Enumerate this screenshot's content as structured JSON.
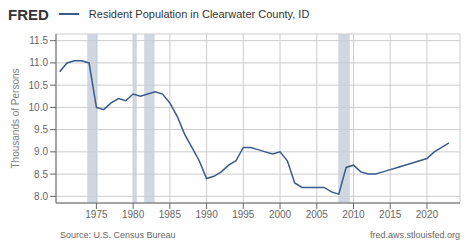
{
  "chart_data": {
    "type": "line",
    "title": "Resident Population in Clearwater County, ID",
    "y_label": "Thousands of Persons",
    "annotations": [
      "FRED",
      "Source: U.S. Census Bureau",
      "fred.aws.stlouisfed.org"
    ],
    "color": "#3a5a8c",
    "grid": true,
    "xlim": [
      1969.5,
      2024.5
    ],
    "xticks": [
      1975,
      1980,
      1985,
      1990,
      1995,
      2000,
      2005,
      2010,
      2015,
      2020
    ],
    "ylim": [
      7.85,
      11.65
    ],
    "yticks": [
      {
        "value": 8.0,
        "label": "8.0"
      },
      {
        "value": 8.5,
        "label": "8.5"
      },
      {
        "value": 9.0,
        "label": "9.0"
      },
      {
        "value": 9.5,
        "label": "9.5"
      },
      {
        "value": 10.0,
        "label": "10.0"
      },
      {
        "value": 10.5,
        "label": "10.5"
      },
      {
        "value": 11.0,
        "label": "11.0"
      },
      {
        "value": 11.5,
        "label": "11.5"
      }
    ],
    "recessions": [
      [
        1973.75,
        1975.17
      ],
      [
        1980.0,
        1980.5
      ],
      [
        1981.5,
        1982.92
      ],
      [
        2007.92,
        2009.5
      ]
    ],
    "x": [
      1970,
      1971,
      1972,
      1973,
      1974,
      1975,
      1976,
      1977,
      1978,
      1979,
      1980,
      1981,
      1982,
      1983,
      1984,
      1985,
      1986,
      1987,
      1988,
      1989,
      1990,
      1991,
      1992,
      1993,
      1994,
      1995,
      1996,
      1997,
      1998,
      1999,
      2000,
      2001,
      2002,
      2003,
      2004,
      2005,
      2006,
      2007,
      2008,
      2009,
      2010,
      2011,
      2012,
      2013,
      2014,
      2015,
      2016,
      2017,
      2018,
      2019,
      2020,
      2021,
      2022,
      2023
    ],
    "values": [
      10.8,
      11.0,
      11.05,
      11.05,
      11.0,
      10.0,
      9.95,
      10.1,
      10.2,
      10.15,
      10.3,
      10.25,
      10.3,
      10.35,
      10.3,
      10.1,
      9.8,
      9.4,
      9.1,
      8.8,
      8.4,
      8.45,
      8.55,
      8.7,
      8.8,
      9.1,
      9.1,
      9.05,
      9.0,
      8.95,
      9.0,
      8.8,
      8.3,
      8.2,
      8.2,
      8.2,
      8.2,
      8.1,
      8.05,
      8.65,
      8.7,
      8.55,
      8.5,
      8.5,
      8.55,
      8.6,
      8.65,
      8.7,
      8.75,
      8.8,
      8.85,
      9.0,
      9.1,
      9.2
    ]
  }
}
